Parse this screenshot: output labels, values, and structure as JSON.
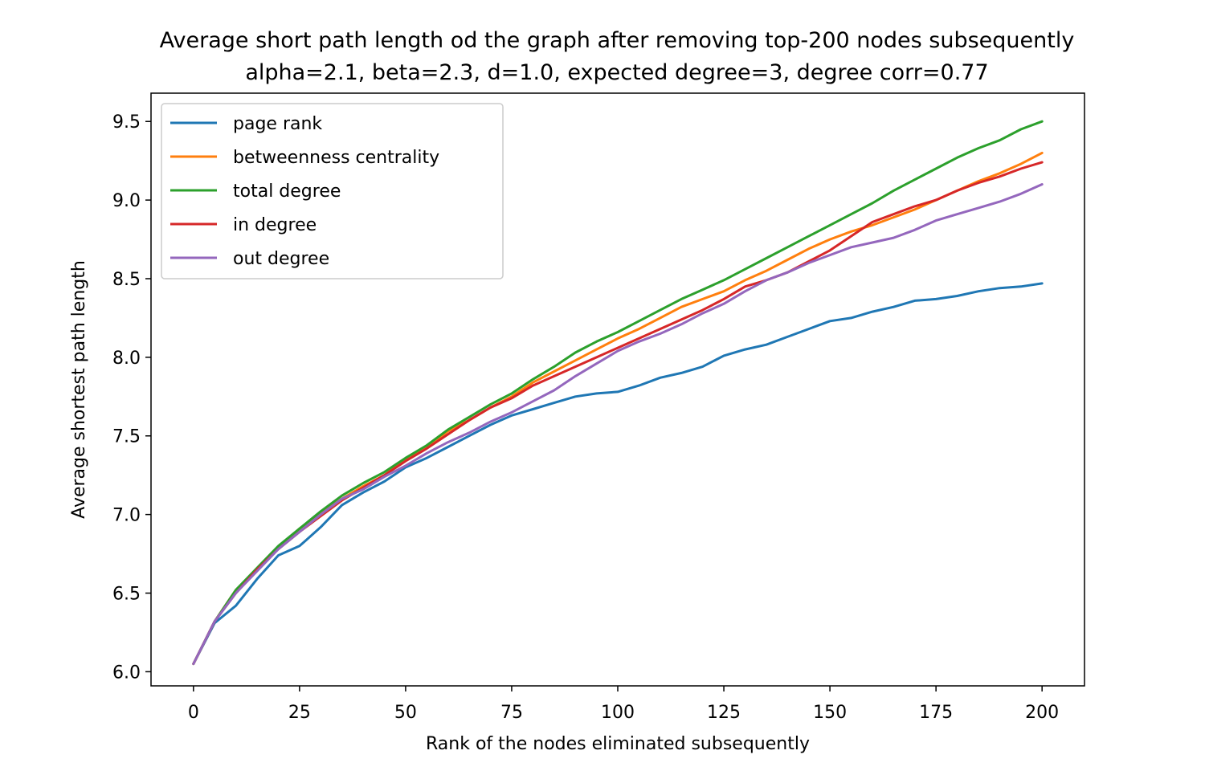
{
  "chart_data": {
    "type": "line",
    "title": "Average short path length od the graph after removing top-200 nodes subsequently",
    "subtitle": "alpha=2.1, beta=2.3, d=1.0, expected degree=3, degree corr=0.77",
    "xlabel": "Rank of the nodes eliminated subsequently",
    "ylabel": "Average shortest path length",
    "xlim": [
      -10,
      210
    ],
    "ylim": [
      5.91,
      9.68
    ],
    "xticks": [
      0,
      25,
      50,
      75,
      100,
      125,
      150,
      175,
      200
    ],
    "xtick_labels": [
      "0",
      "25",
      "50",
      "75",
      "100",
      "125",
      "150",
      "175",
      "200"
    ],
    "yticks": [
      6.0,
      6.5,
      7.0,
      7.5,
      8.0,
      8.5,
      9.0,
      9.5
    ],
    "ytick_labels": [
      "6.0",
      "6.5",
      "7.0",
      "7.5",
      "8.0",
      "8.5",
      "9.0",
      "9.5"
    ],
    "grid": false,
    "legend_position": "top-left",
    "x": [
      0,
      5,
      10,
      15,
      20,
      25,
      30,
      35,
      40,
      45,
      50,
      55,
      60,
      65,
      70,
      75,
      80,
      85,
      90,
      95,
      100,
      105,
      110,
      115,
      120,
      125,
      130,
      135,
      140,
      145,
      150,
      155,
      160,
      165,
      170,
      175,
      180,
      185,
      190,
      195,
      200
    ],
    "series": [
      {
        "name": "page rank",
        "color": "#1f77b4",
        "values": [
          6.05,
          6.31,
          6.42,
          6.59,
          6.74,
          6.8,
          6.92,
          7.06,
          7.14,
          7.21,
          7.3,
          7.36,
          7.43,
          7.5,
          7.57,
          7.63,
          7.67,
          7.71,
          7.75,
          7.77,
          7.78,
          7.82,
          7.87,
          7.9,
          7.94,
          8.01,
          8.05,
          8.08,
          8.13,
          8.18,
          8.23,
          8.25,
          8.29,
          8.32,
          8.36,
          8.37,
          8.39,
          8.42,
          8.44,
          8.45,
          8.47
        ]
      },
      {
        "name": "betweenness centrality",
        "color": "#ff7f0e",
        "values": [
          6.05,
          6.32,
          6.52,
          6.65,
          6.79,
          6.91,
          7.01,
          7.1,
          7.18,
          7.25,
          7.35,
          7.43,
          7.53,
          7.6,
          7.68,
          7.75,
          7.84,
          7.91,
          7.98,
          8.05,
          8.12,
          8.18,
          8.25,
          8.32,
          8.37,
          8.42,
          8.49,
          8.55,
          8.62,
          8.69,
          8.75,
          8.8,
          8.84,
          8.89,
          8.94,
          9.0,
          9.06,
          9.12,
          9.17,
          9.23,
          9.3
        ]
      },
      {
        "name": "total degree",
        "color": "#2ca02c",
        "values": [
          6.05,
          6.32,
          6.52,
          6.66,
          6.8,
          6.91,
          7.02,
          7.12,
          7.2,
          7.27,
          7.36,
          7.44,
          7.54,
          7.62,
          7.7,
          7.77,
          7.86,
          7.94,
          8.03,
          8.1,
          8.16,
          8.23,
          8.3,
          8.37,
          8.43,
          8.49,
          8.56,
          8.63,
          8.7,
          8.77,
          8.84,
          8.91,
          8.98,
          9.06,
          9.13,
          9.2,
          9.27,
          9.33,
          9.38,
          9.45,
          9.5
        ]
      },
      {
        "name": "in degree",
        "color": "#d62728",
        "values": [
          6.05,
          6.32,
          6.5,
          6.65,
          6.78,
          6.89,
          6.99,
          7.09,
          7.17,
          7.25,
          7.34,
          7.42,
          7.51,
          7.6,
          7.68,
          7.74,
          7.82,
          7.88,
          7.94,
          8.0,
          8.06,
          8.12,
          8.18,
          8.24,
          8.3,
          8.37,
          8.45,
          8.49,
          8.54,
          8.61,
          8.68,
          8.77,
          8.86,
          8.91,
          8.96,
          9.0,
          9.06,
          9.11,
          9.15,
          9.2,
          9.24
        ]
      },
      {
        "name": "out degree",
        "color": "#9467bd",
        "values": [
          6.05,
          6.32,
          6.5,
          6.64,
          6.78,
          6.89,
          7.0,
          7.1,
          7.16,
          7.24,
          7.31,
          7.39,
          7.46,
          7.52,
          7.59,
          7.65,
          7.72,
          7.79,
          7.88,
          7.96,
          8.04,
          8.1,
          8.15,
          8.21,
          8.28,
          8.34,
          8.42,
          8.49,
          8.54,
          8.6,
          8.65,
          8.7,
          8.73,
          8.76,
          8.81,
          8.87,
          8.91,
          8.95,
          8.99,
          9.04,
          9.1
        ]
      }
    ]
  }
}
